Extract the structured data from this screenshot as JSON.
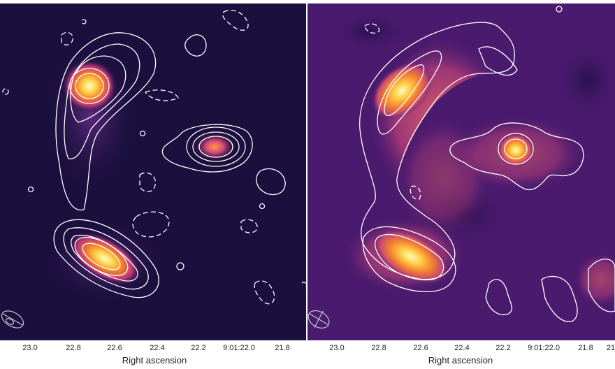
{
  "left_panel": {
    "ticks": [
      "23.0",
      "22.8",
      "22.6",
      "22.4",
      "22.2",
      "9:01:22.0",
      "21.8"
    ],
    "xlabel": "Right ascension",
    "colors": {
      "background": "#1a0f3d",
      "contour": "#ffffff"
    }
  },
  "right_panel": {
    "ticks": [
      "23.0",
      "22.8",
      "22.6",
      "22.4",
      "22.2",
      "9:01:22.0",
      "21.8",
      "21"
    ],
    "xlabel": "Right ascension",
    "colors": {
      "background": "#4a1a6e",
      "contour": "#ffffff"
    }
  }
}
